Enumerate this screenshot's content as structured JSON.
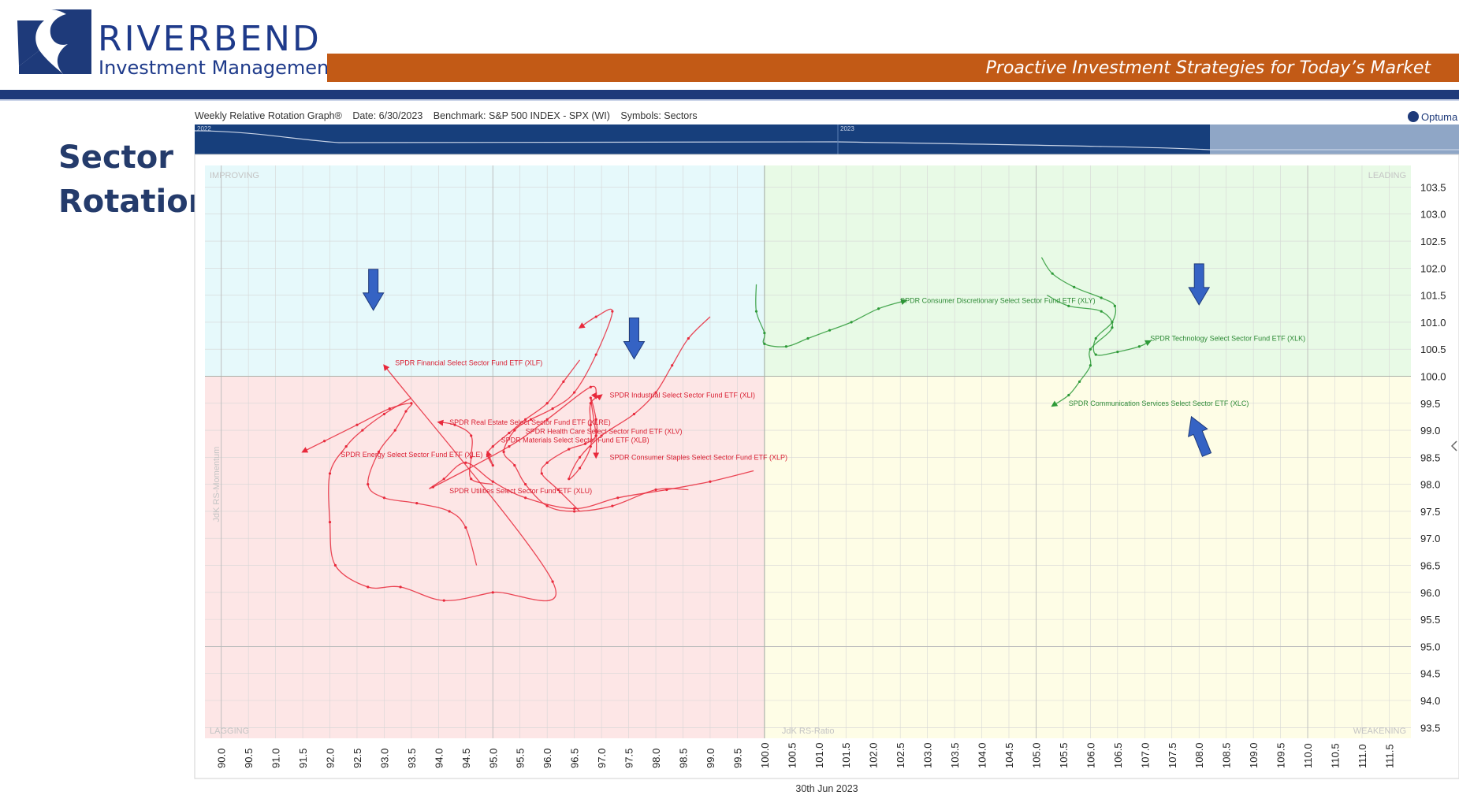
{
  "header": {
    "logo_word_1": "RIVERBEND",
    "logo_word_2": "Investment Management",
    "tagline": "Proactive Investment Strategies for Today’s Market",
    "brand_blue": "#1e3a7a",
    "brand_orange": "#c25a16"
  },
  "slide": {
    "title_line_1": "Sector",
    "title_line_2": "Rotation"
  },
  "chart_header": {
    "name": "Weekly Relative Rotation Graph®",
    "date": "Date: 6/30/2023",
    "benchmark": "Benchmark: S&P 500 INDEX - SPX (WI)",
    "symbols": "Symbols: Sectors",
    "vendor": "Optuma"
  },
  "timeline": {
    "year_labels": [
      "2022",
      "2023"
    ]
  },
  "chart_data": {
    "type": "scatter",
    "title": "Weekly Relative Rotation Graph®",
    "xlabel": "JdK RS-Ratio",
    "ylabel": "JdK RS-Momentum",
    "footer": "30th Jun 2023",
    "xlim": [
      89.7,
      111.9
    ],
    "ylim": [
      93.3,
      103.9
    ],
    "x_ticks": [
      "90.0",
      "90.5",
      "91.0",
      "91.5",
      "92.0",
      "92.5",
      "93.0",
      "93.5",
      "94.0",
      "94.5",
      "95.0",
      "95.5",
      "96.0",
      "96.5",
      "97.0",
      "97.5",
      "98.0",
      "98.5",
      "99.0",
      "99.5",
      "100.0",
      "100.5",
      "101.0",
      "101.5",
      "102.0",
      "102.5",
      "103.0",
      "103.5",
      "104.0",
      "104.5",
      "105.0",
      "105.5",
      "106.0",
      "106.5",
      "107.0",
      "107.5",
      "108.0",
      "108.5",
      "109.0",
      "109.5",
      "110.0",
      "110.5",
      "111.0",
      "111.5"
    ],
    "y_ticks": [
      "103.5",
      "103.0",
      "102.5",
      "102.0",
      "101.5",
      "101.0",
      "100.5",
      "100.0",
      "99.5",
      "99.0",
      "98.5",
      "98.0",
      "97.5",
      "97.0",
      "96.5",
      "96.0",
      "95.5",
      "95.0",
      "94.5",
      "94.0",
      "93.5"
    ],
    "center": [
      100,
      100
    ],
    "grid": true,
    "quadrants": [
      {
        "name": "IMPROVING",
        "position": "top-left",
        "color": "#e6f9fb"
      },
      {
        "name": "LEADING",
        "position": "top-right",
        "color": "#e8fae6"
      },
      {
        "name": "LAGGING",
        "position": "bottom-left",
        "color": "#fde6e6"
      },
      {
        "name": "WEAKENING",
        "position": "bottom-right",
        "color": "#fefde6"
      }
    ],
    "series": [
      {
        "name": "SPDR Financial Select Sector Fund ETF (XLF)",
        "color": "#e8293b",
        "label_at": [
          93.2,
          100.25
        ],
        "points": [
          [
            93.5,
            99.6
          ],
          [
            93.0,
            99.3
          ],
          [
            92.6,
            99.0
          ],
          [
            92.3,
            98.7
          ],
          [
            92.0,
            98.2
          ],
          [
            92.0,
            97.3
          ],
          [
            92.1,
            96.5
          ],
          [
            92.7,
            96.1
          ],
          [
            93.3,
            96.1
          ],
          [
            94.1,
            95.85
          ],
          [
            95.0,
            96.0
          ],
          [
            96.1,
            96.2
          ],
          [
            93.0,
            100.2
          ]
        ]
      },
      {
        "name": "SPDR Energy Select Sector Fund ETF (XLE)",
        "color": "#e8293b",
        "label_at": [
          92.2,
          98.55
        ],
        "points": [
          [
            94.7,
            96.5
          ],
          [
            94.5,
            97.2
          ],
          [
            94.2,
            97.5
          ],
          [
            93.6,
            97.65
          ],
          [
            93.0,
            97.75
          ],
          [
            92.7,
            98.0
          ],
          [
            92.9,
            98.6
          ],
          [
            93.2,
            99.0
          ],
          [
            93.4,
            99.35
          ],
          [
            93.5,
            99.5
          ],
          [
            93.1,
            99.4
          ],
          [
            92.5,
            99.1
          ],
          [
            91.9,
            98.8
          ],
          [
            91.5,
            98.6
          ]
        ]
      },
      {
        "name": "SPDR Real Estate Select Sector Fund ETF (XLRE)",
        "color": "#e8293b",
        "label_at": [
          94.2,
          99.15
        ],
        "points": [
          [
            95.0,
            98.0
          ],
          [
            94.6,
            98.1
          ],
          [
            94.6,
            98.5
          ],
          [
            94.6,
            98.9
          ],
          [
            94.3,
            99.1
          ],
          [
            94.0,
            99.15
          ]
        ]
      },
      {
        "name": "SPDR Health Care Select Sector Fund ETF (XLV)",
        "color": "#e8293b",
        "label_at": [
          95.6,
          98.98
        ],
        "points": [
          [
            98.6,
            97.9
          ],
          [
            98.0,
            97.9
          ],
          [
            97.2,
            97.6
          ],
          [
            96.5,
            97.5
          ],
          [
            96.0,
            97.6
          ],
          [
            95.6,
            98.0
          ],
          [
            95.4,
            98.35
          ],
          [
            95.2,
            98.6
          ],
          [
            95.4,
            99.0
          ],
          [
            95.7,
            99.2
          ],
          [
            96.1,
            99.4
          ],
          [
            96.5,
            99.7
          ],
          [
            96.9,
            100.4
          ],
          [
            97.2,
            101.2
          ],
          [
            96.9,
            101.1
          ],
          [
            96.6,
            100.9
          ]
        ]
      },
      {
        "name": "SPDR Materials Select Sector Fund ETF (XLB)",
        "color": "#e8293b",
        "label_at": [
          95.15,
          98.82
        ],
        "points": [
          [
            96.6,
            100.3
          ],
          [
            96.3,
            99.9
          ],
          [
            96.0,
            99.5
          ],
          [
            95.6,
            99.2
          ],
          [
            95.3,
            98.95
          ],
          [
            95.0,
            98.7
          ],
          [
            94.9,
            98.55
          ],
          [
            95.0,
            98.35
          ],
          [
            94.9,
            98.6
          ]
        ]
      },
      {
        "name": "SPDR Industrial Select Sector Fund ETF (XLI)",
        "color": "#e8293b",
        "label_at": [
          97.15,
          99.65
        ],
        "points": [
          [
            99.0,
            101.1
          ],
          [
            98.6,
            100.7
          ],
          [
            98.3,
            100.2
          ],
          [
            98.0,
            99.7
          ],
          [
            97.6,
            99.3
          ],
          [
            97.0,
            98.9
          ],
          [
            96.6,
            98.5
          ],
          [
            96.4,
            98.1
          ],
          [
            96.6,
            98.3
          ],
          [
            96.8,
            98.7
          ],
          [
            96.8,
            99.1
          ],
          [
            96.8,
            99.5
          ],
          [
            97.0,
            99.65
          ]
        ]
      },
      {
        "name": "SPDR Consumer Staples Select Sector Fund ETF (XLP)",
        "color": "#e8293b",
        "label_at": [
          97.15,
          98.5
        ],
        "points": [
          [
            96.6,
            97.5
          ],
          [
            96.2,
            97.9
          ],
          [
            95.9,
            98.2
          ],
          [
            96.0,
            98.4
          ],
          [
            96.4,
            98.65
          ],
          [
            96.7,
            98.75
          ],
          [
            96.9,
            98.9
          ],
          [
            96.9,
            99.2
          ],
          [
            96.8,
            99.6
          ],
          [
            96.9,
            98.9
          ],
          [
            96.9,
            98.5
          ]
        ]
      },
      {
        "name": "SPDR Utilities Select Sector Fund ETF (XLU)",
        "color": "#e8293b",
        "label_at": [
          94.2,
          97.88
        ],
        "points": [
          [
            99.8,
            98.25
          ],
          [
            99.0,
            98.05
          ],
          [
            98.2,
            97.9
          ],
          [
            97.3,
            97.75
          ],
          [
            96.5,
            97.55
          ],
          [
            95.6,
            97.75
          ],
          [
            95.0,
            98.05
          ],
          [
            94.5,
            98.4
          ],
          [
            94.1,
            98.1
          ],
          [
            93.9,
            97.95
          ],
          [
            95.3,
            98.7
          ],
          [
            96.0,
            99.2
          ],
          [
            96.8,
            99.8
          ],
          [
            96.9,
            99.6
          ]
        ]
      },
      {
        "name": "SPDR Consumer Discretionary Select Sector Fund ETF (XLY)",
        "color": "#2e9a38",
        "label_at": [
          102.5,
          101.4
        ],
        "points": [
          [
            99.85,
            101.7
          ],
          [
            99.85,
            101.2
          ],
          [
            100.0,
            100.8
          ],
          [
            100.0,
            100.6
          ],
          [
            100.4,
            100.55
          ],
          [
            100.8,
            100.7
          ],
          [
            101.2,
            100.85
          ],
          [
            101.6,
            101.0
          ],
          [
            102.1,
            101.25
          ],
          [
            102.6,
            101.4
          ]
        ]
      },
      {
        "name": "SPDR Technology Select Sector Fund ETF (XLK)",
        "color": "#2e9a38",
        "label_at": [
          107.1,
          100.7
        ],
        "points": [
          [
            105.1,
            102.2
          ],
          [
            105.3,
            101.9
          ],
          [
            105.7,
            101.65
          ],
          [
            106.2,
            101.45
          ],
          [
            106.45,
            101.3
          ],
          [
            106.4,
            101.0
          ],
          [
            106.1,
            100.7
          ],
          [
            106.1,
            100.4
          ],
          [
            106.5,
            100.45
          ],
          [
            106.9,
            100.55
          ],
          [
            107.1,
            100.65
          ]
        ]
      },
      {
        "name": "SPDR Communication Services Select Sector ETF (XLC)",
        "color": "#2e9a38",
        "label_at": [
          105.6,
          99.5
        ],
        "points": [
          [
            105.2,
            101.5
          ],
          [
            105.6,
            101.3
          ],
          [
            106.2,
            101.2
          ],
          [
            106.4,
            100.9
          ],
          [
            106.0,
            100.5
          ],
          [
            106.0,
            100.2
          ],
          [
            105.8,
            99.9
          ],
          [
            105.6,
            99.65
          ],
          [
            105.3,
            99.45
          ]
        ]
      }
    ],
    "annotation_arrows": [
      {
        "direction": "down",
        "at": [
          92.8,
          101.6
        ],
        "color": "#3563c4"
      },
      {
        "direction": "down",
        "at": [
          97.6,
          100.7
        ],
        "color": "#3563c4"
      },
      {
        "direction": "down",
        "at": [
          108.0,
          101.7
        ],
        "color": "#3563c4"
      },
      {
        "direction": "up",
        "at": [
          108.0,
          98.9
        ],
        "color": "#3563c4"
      }
    ]
  }
}
